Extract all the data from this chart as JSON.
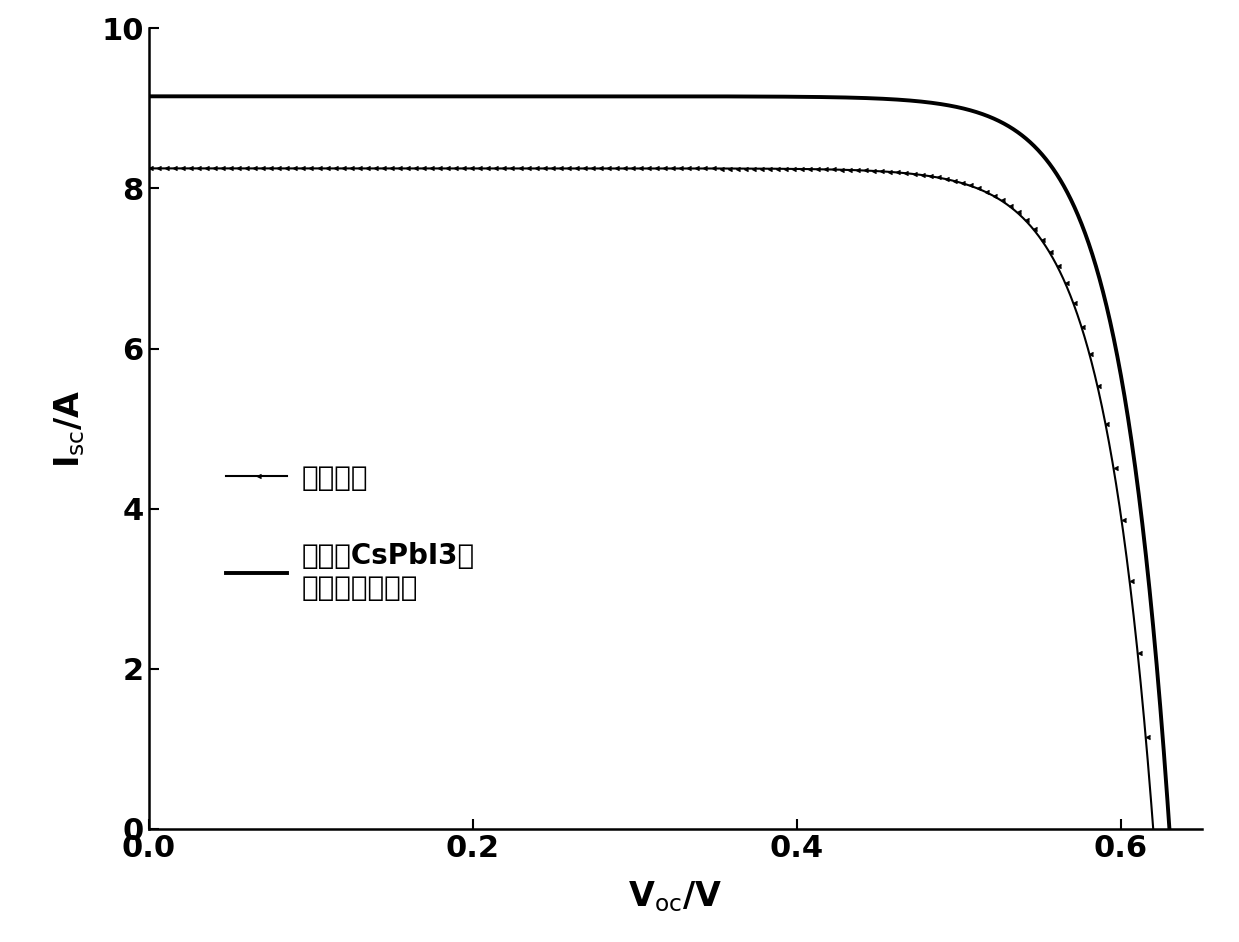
{
  "xlabel": "V$_\\mathrm{oc}$/V",
  "ylabel": "I$_\\mathrm{sc}$/A",
  "xlim": [
    0,
    0.65
  ],
  "ylim": [
    0,
    10
  ],
  "xticks": [
    0.0,
    0.2,
    0.4,
    0.6
  ],
  "yticks": [
    0,
    2,
    4,
    6,
    8,
    10
  ],
  "curve1_label": "晶硅电池",
  "curve2_label": "涂覆了CsPbI3量\n子点的晶硅电池",
  "curve1_isc": 8.25,
  "curve1_voc": 0.62,
  "curve2_isc": 9.15,
  "curve2_voc": 0.63,
  "background_color": "#ffffff",
  "line_color": "#000000",
  "xlabel_fontsize": 24,
  "ylabel_fontsize": 24,
  "tick_fontsize": 22,
  "legend_fontsize": 20
}
